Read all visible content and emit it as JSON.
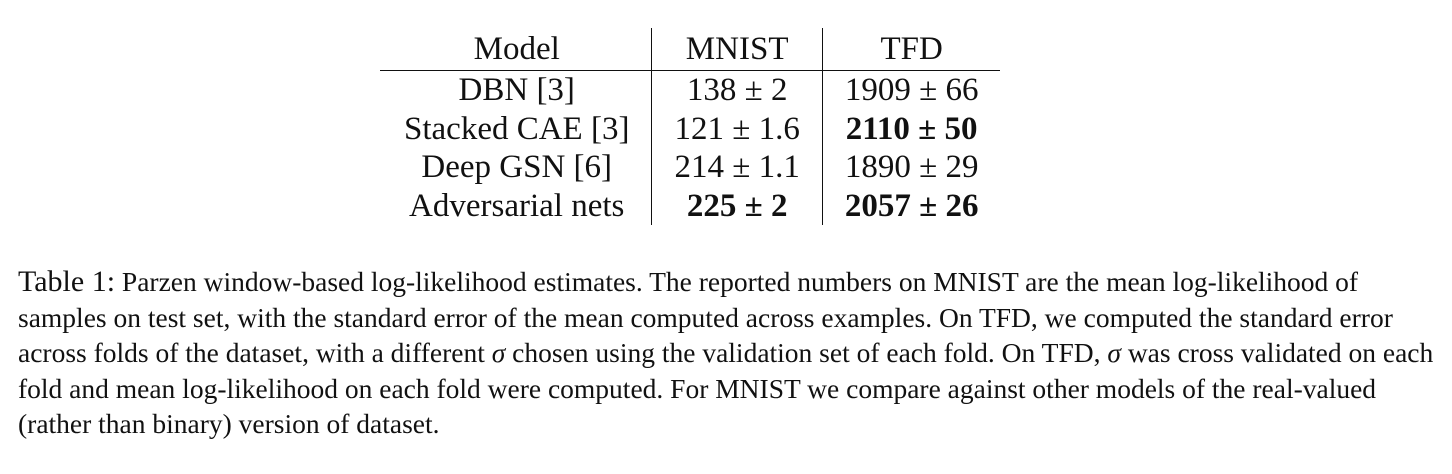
{
  "table": {
    "headers": [
      "Model",
      "MNIST",
      "TFD"
    ],
    "rows": [
      {
        "model": "DBN [3]",
        "mnist": "138 ± 2",
        "tfd": "1909 ± 66",
        "bold": [
          false,
          false
        ]
      },
      {
        "model": "Stacked CAE [3]",
        "mnist": "121 ± 1.6",
        "tfd": "2110 ± 50",
        "bold": [
          false,
          true
        ]
      },
      {
        "model": "Deep GSN [6]",
        "mnist": "214 ± 1.1",
        "tfd": "1890 ± 29",
        "bold": [
          false,
          false
        ]
      },
      {
        "model": "Adversarial nets",
        "mnist": "225 ± 2",
        "tfd": "2057 ± 26",
        "bold": [
          true,
          true
        ]
      }
    ]
  },
  "caption": {
    "label": "Table 1:",
    "part1": " Parzen window-based log-likelihood estimates. The reported numbers on MNIST are the mean log-likelihood of samples on test set, with the standard error of the mean computed across examples. On TFD, we computed the standard error across folds of the dataset, with a different ",
    "sigma": "σ",
    "part2": " chosen using the validation set of each fold. On TFD, ",
    "part3": " was cross validated on each fold and mean log-likelihood on each fold were computed. For MNIST we compare against other models of the real-valued (rather than binary) version of dataset."
  }
}
